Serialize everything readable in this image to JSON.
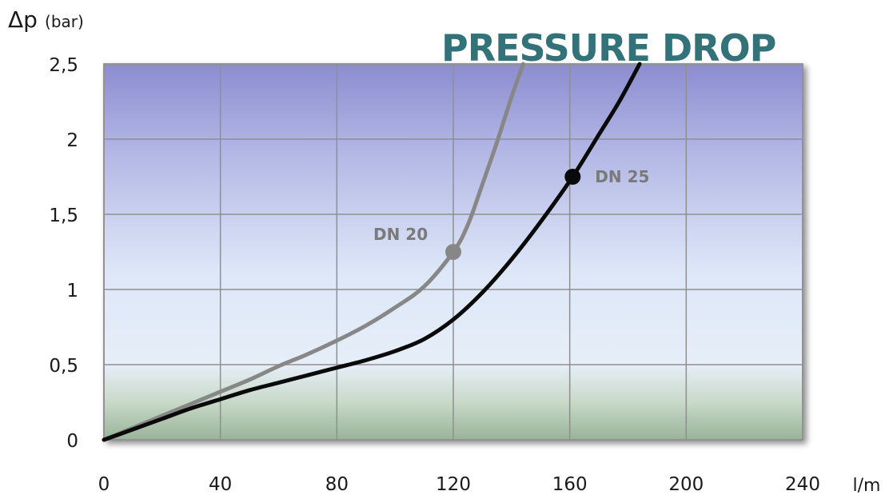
{
  "chart_data": {
    "type": "line",
    "title": "PRESSURE DROP",
    "ylabel": "Δp",
    "ylabel_unit": "(bar)",
    "xlabel": "l/m",
    "xlim": [
      0,
      240
    ],
    "ylim": [
      0,
      2.5
    ],
    "x_ticks": [
      "0",
      "40",
      "80",
      "120",
      "160",
      "200",
      "240"
    ],
    "y_ticks": [
      "0",
      "0,5",
      "1",
      "1,5",
      "2",
      "2,5"
    ],
    "grid": true,
    "series": [
      {
        "name": "DN 20",
        "color": "#878787",
        "marker": {
          "x": 120,
          "y": 1.25
        },
        "points": [
          [
            0,
            0
          ],
          [
            10,
            0.08
          ],
          [
            20,
            0.16
          ],
          [
            30,
            0.24
          ],
          [
            40,
            0.32
          ],
          [
            50,
            0.4
          ],
          [
            60,
            0.49
          ],
          [
            70,
            0.57
          ],
          [
            80,
            0.66
          ],
          [
            90,
            0.76
          ],
          [
            100,
            0.88
          ],
          [
            110,
            1.02
          ],
          [
            120,
            1.25
          ],
          [
            125,
            1.43
          ],
          [
            130,
            1.7
          ],
          [
            135,
            1.98
          ],
          [
            140,
            2.28
          ],
          [
            144,
            2.5
          ]
        ]
      },
      {
        "name": "DN 25",
        "color": "#0a0a0a",
        "marker": {
          "x": 161,
          "y": 1.75
        },
        "points": [
          [
            0,
            0
          ],
          [
            10,
            0.07
          ],
          [
            20,
            0.14
          ],
          [
            30,
            0.21
          ],
          [
            40,
            0.27
          ],
          [
            50,
            0.33
          ],
          [
            60,
            0.38
          ],
          [
            70,
            0.43
          ],
          [
            80,
            0.48
          ],
          [
            90,
            0.53
          ],
          [
            100,
            0.59
          ],
          [
            110,
            0.67
          ],
          [
            120,
            0.8
          ],
          [
            130,
            0.98
          ],
          [
            140,
            1.2
          ],
          [
            150,
            1.45
          ],
          [
            161,
            1.75
          ],
          [
            170,
            2.03
          ],
          [
            177,
            2.25
          ],
          [
            184,
            2.5
          ]
        ]
      }
    ]
  }
}
